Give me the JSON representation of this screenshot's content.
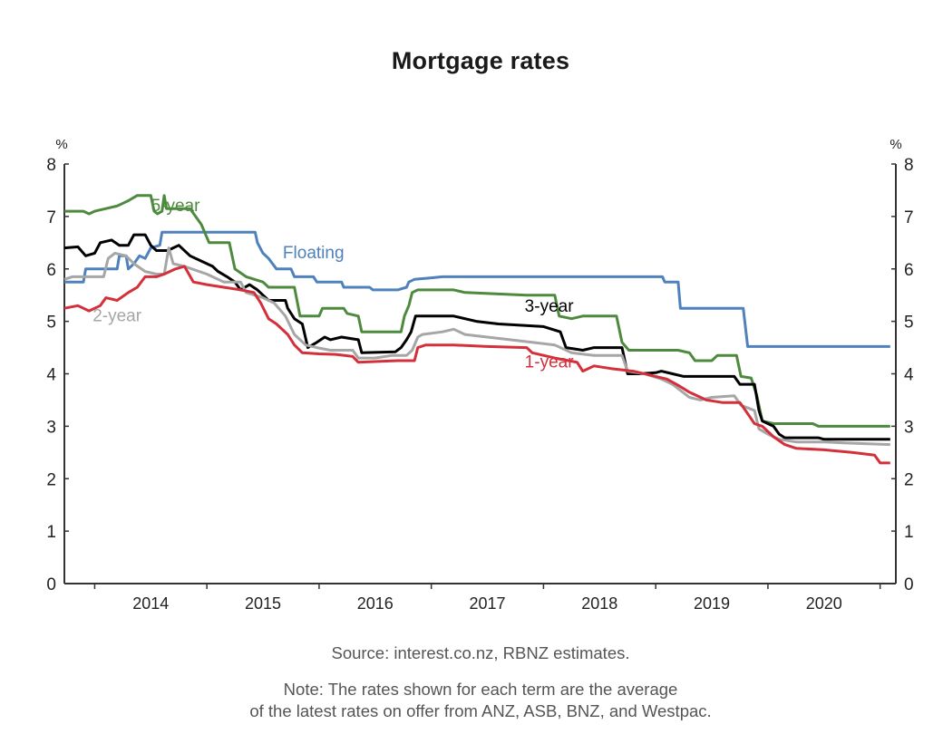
{
  "chart_data": {
    "type": "line",
    "title": "Mortgage rates",
    "ylabel_left": "%",
    "ylabel_right": "%",
    "xlabel": "",
    "xlim": [
      2013.73,
      2021.14
    ],
    "ylim": [
      0,
      8
    ],
    "yticks": [
      "0",
      "1",
      "2",
      "3",
      "4",
      "5",
      "6",
      "7",
      "8"
    ],
    "xtick_boundaries": [
      2014,
      2015,
      2016,
      2017,
      2018,
      2019,
      2020,
      2021
    ],
    "xticklabels": [
      {
        "label": "2014",
        "at": 2014.5
      },
      {
        "label": "2015",
        "at": 2015.5
      },
      {
        "label": "2016",
        "at": 2016.5
      },
      {
        "label": "2017",
        "at": 2017.5
      },
      {
        "label": "2018",
        "at": 2018.5
      },
      {
        "label": "2019",
        "at": 2019.5
      },
      {
        "label": "2020",
        "at": 2020.5
      }
    ],
    "grid": false,
    "series": [
      {
        "name": "Floating",
        "color": "#4f81bd",
        "label_at": [
          2015.95,
          6.2
        ],
        "points": [
          [
            2013.73,
            5.75
          ],
          [
            2013.9,
            5.75
          ],
          [
            2013.92,
            6.0
          ],
          [
            2014.2,
            6.0
          ],
          [
            2014.22,
            6.25
          ],
          [
            2014.28,
            6.25
          ],
          [
            2014.3,
            6.0
          ],
          [
            2014.35,
            6.1
          ],
          [
            2014.4,
            6.25
          ],
          [
            2014.45,
            6.2
          ],
          [
            2014.5,
            6.4
          ],
          [
            2014.58,
            6.45
          ],
          [
            2014.6,
            6.7
          ],
          [
            2015.43,
            6.7
          ],
          [
            2015.45,
            6.5
          ],
          [
            2015.5,
            6.3
          ],
          [
            2015.55,
            6.2
          ],
          [
            2015.62,
            6.0
          ],
          [
            2015.75,
            6.0
          ],
          [
            2015.78,
            5.85
          ],
          [
            2015.95,
            5.85
          ],
          [
            2015.98,
            5.75
          ],
          [
            2016.2,
            5.75
          ],
          [
            2016.22,
            5.65
          ],
          [
            2016.45,
            5.65
          ],
          [
            2016.48,
            5.6
          ],
          [
            2016.7,
            5.6
          ],
          [
            2016.78,
            5.65
          ],
          [
            2016.8,
            5.75
          ],
          [
            2016.85,
            5.8
          ],
          [
            2017.0,
            5.83
          ],
          [
            2017.1,
            5.85
          ],
          [
            2019.06,
            5.85
          ],
          [
            2019.08,
            5.75
          ],
          [
            2019.2,
            5.75
          ],
          [
            2019.22,
            5.25
          ],
          [
            2019.78,
            5.25
          ],
          [
            2019.82,
            4.52
          ],
          [
            2021.09,
            4.52
          ]
        ]
      },
      {
        "name": "5-year",
        "color": "#4e8a3e",
        "label_at": [
          2014.72,
          7.1
        ],
        "points": [
          [
            2013.73,
            7.1
          ],
          [
            2013.9,
            7.1
          ],
          [
            2013.95,
            7.05
          ],
          [
            2014.0,
            7.1
          ],
          [
            2014.1,
            7.15
          ],
          [
            2014.2,
            7.2
          ],
          [
            2014.3,
            7.3
          ],
          [
            2014.38,
            7.4
          ],
          [
            2014.5,
            7.4
          ],
          [
            2014.53,
            7.1
          ],
          [
            2014.56,
            7.05
          ],
          [
            2014.6,
            7.1
          ],
          [
            2014.62,
            7.4
          ],
          [
            2014.64,
            7.15
          ],
          [
            2014.85,
            7.15
          ],
          [
            2014.95,
            6.85
          ],
          [
            2015.02,
            6.5
          ],
          [
            2015.2,
            6.5
          ],
          [
            2015.25,
            6.0
          ],
          [
            2015.35,
            5.85
          ],
          [
            2015.5,
            5.75
          ],
          [
            2015.55,
            5.65
          ],
          [
            2015.78,
            5.65
          ],
          [
            2015.83,
            5.1
          ],
          [
            2016.0,
            5.1
          ],
          [
            2016.03,
            5.25
          ],
          [
            2016.22,
            5.25
          ],
          [
            2016.25,
            5.15
          ],
          [
            2016.35,
            5.1
          ],
          [
            2016.38,
            4.8
          ],
          [
            2016.73,
            4.8
          ],
          [
            2016.76,
            5.1
          ],
          [
            2016.8,
            5.3
          ],
          [
            2016.83,
            5.55
          ],
          [
            2016.88,
            5.6
          ],
          [
            2017.2,
            5.6
          ],
          [
            2017.3,
            5.55
          ],
          [
            2017.85,
            5.5
          ],
          [
            2018.1,
            5.5
          ],
          [
            2018.14,
            5.1
          ],
          [
            2018.25,
            5.05
          ],
          [
            2018.35,
            5.1
          ],
          [
            2018.65,
            5.1
          ],
          [
            2018.7,
            4.6
          ],
          [
            2018.76,
            4.45
          ],
          [
            2019.2,
            4.45
          ],
          [
            2019.3,
            4.4
          ],
          [
            2019.35,
            4.25
          ],
          [
            2019.5,
            4.25
          ],
          [
            2019.55,
            4.35
          ],
          [
            2019.72,
            4.35
          ],
          [
            2019.76,
            3.95
          ],
          [
            2019.85,
            3.92
          ],
          [
            2019.9,
            3.6
          ],
          [
            2019.95,
            3.1
          ],
          [
            2020.05,
            3.05
          ],
          [
            2020.15,
            3.05
          ],
          [
            2020.4,
            3.05
          ],
          [
            2020.45,
            3.0
          ],
          [
            2021.09,
            3.0
          ]
        ]
      },
      {
        "name": "3-year",
        "color": "#000000",
        "label_at": [
          2018.05,
          5.18
        ],
        "points": [
          [
            2013.73,
            6.4
          ],
          [
            2013.85,
            6.42
          ],
          [
            2013.92,
            6.25
          ],
          [
            2014.0,
            6.3
          ],
          [
            2014.05,
            6.5
          ],
          [
            2014.15,
            6.55
          ],
          [
            2014.22,
            6.45
          ],
          [
            2014.3,
            6.45
          ],
          [
            2014.35,
            6.65
          ],
          [
            2014.45,
            6.65
          ],
          [
            2014.5,
            6.45
          ],
          [
            2014.55,
            6.35
          ],
          [
            2014.65,
            6.35
          ],
          [
            2014.7,
            6.4
          ],
          [
            2014.75,
            6.45
          ],
          [
            2014.85,
            6.25
          ],
          [
            2014.95,
            6.15
          ],
          [
            2015.05,
            6.05
          ],
          [
            2015.1,
            5.95
          ],
          [
            2015.18,
            5.85
          ],
          [
            2015.25,
            5.75
          ],
          [
            2015.3,
            5.6
          ],
          [
            2015.38,
            5.7
          ],
          [
            2015.45,
            5.6
          ],
          [
            2015.5,
            5.5
          ],
          [
            2015.55,
            5.4
          ],
          [
            2015.7,
            5.4
          ],
          [
            2015.72,
            5.25
          ],
          [
            2015.78,
            5.05
          ],
          [
            2015.85,
            4.95
          ],
          [
            2015.9,
            4.5
          ],
          [
            2015.98,
            4.6
          ],
          [
            2016.05,
            4.7
          ],
          [
            2016.1,
            4.65
          ],
          [
            2016.2,
            4.7
          ],
          [
            2016.35,
            4.65
          ],
          [
            2016.38,
            4.4
          ],
          [
            2016.68,
            4.42
          ],
          [
            2016.73,
            4.5
          ],
          [
            2016.78,
            4.65
          ],
          [
            2016.82,
            4.8
          ],
          [
            2016.86,
            5.1
          ],
          [
            2017.2,
            5.1
          ],
          [
            2017.4,
            5.0
          ],
          [
            2017.6,
            4.95
          ],
          [
            2018.0,
            4.9
          ],
          [
            2018.15,
            4.8
          ],
          [
            2018.2,
            4.5
          ],
          [
            2018.35,
            4.45
          ],
          [
            2018.45,
            4.5
          ],
          [
            2018.7,
            4.5
          ],
          [
            2018.75,
            4.0
          ],
          [
            2018.85,
            4.0
          ],
          [
            2019.0,
            4.02
          ],
          [
            2019.05,
            4.05
          ],
          [
            2019.15,
            4.0
          ],
          [
            2019.25,
            3.95
          ],
          [
            2019.7,
            3.95
          ],
          [
            2019.75,
            3.8
          ],
          [
            2019.88,
            3.8
          ],
          [
            2019.92,
            3.3
          ],
          [
            2019.95,
            3.1
          ],
          [
            2020.05,
            3.0
          ],
          [
            2020.1,
            2.85
          ],
          [
            2020.15,
            2.78
          ],
          [
            2020.45,
            2.78
          ],
          [
            2020.5,
            2.75
          ],
          [
            2021.09,
            2.75
          ]
        ]
      },
      {
        "name": "2-year",
        "color": "#a6a6a6",
        "label_at": [
          2014.2,
          5.0
        ],
        "points": [
          [
            2013.73,
            5.8
          ],
          [
            2013.8,
            5.85
          ],
          [
            2013.9,
            5.85
          ],
          [
            2014.08,
            5.85
          ],
          [
            2014.12,
            6.2
          ],
          [
            2014.18,
            6.3
          ],
          [
            2014.28,
            6.25
          ],
          [
            2014.35,
            6.1
          ],
          [
            2014.45,
            5.95
          ],
          [
            2014.55,
            5.9
          ],
          [
            2014.62,
            5.9
          ],
          [
            2014.66,
            6.4
          ],
          [
            2014.7,
            6.1
          ],
          [
            2014.8,
            6.05
          ],
          [
            2015.0,
            5.9
          ],
          [
            2015.15,
            5.75
          ],
          [
            2015.3,
            5.75
          ],
          [
            2015.35,
            5.55
          ],
          [
            2015.5,
            5.45
          ],
          [
            2015.6,
            5.35
          ],
          [
            2015.7,
            5.1
          ],
          [
            2015.78,
            4.75
          ],
          [
            2015.88,
            4.55
          ],
          [
            2015.98,
            4.5
          ],
          [
            2016.1,
            4.45
          ],
          [
            2016.3,
            4.45
          ],
          [
            2016.35,
            4.3
          ],
          [
            2016.5,
            4.3
          ],
          [
            2016.65,
            4.35
          ],
          [
            2016.78,
            4.35
          ],
          [
            2016.83,
            4.45
          ],
          [
            2016.88,
            4.7
          ],
          [
            2016.92,
            4.75
          ],
          [
            2017.1,
            4.8
          ],
          [
            2017.2,
            4.85
          ],
          [
            2017.3,
            4.75
          ],
          [
            2017.5,
            4.7
          ],
          [
            2017.7,
            4.65
          ],
          [
            2017.9,
            4.6
          ],
          [
            2018.1,
            4.55
          ],
          [
            2018.25,
            4.4
          ],
          [
            2018.45,
            4.35
          ],
          [
            2018.7,
            4.35
          ],
          [
            2018.75,
            4.05
          ],
          [
            2018.9,
            4.0
          ],
          [
            2019.05,
            3.9
          ],
          [
            2019.15,
            3.8
          ],
          [
            2019.3,
            3.55
          ],
          [
            2019.4,
            3.5
          ],
          [
            2019.5,
            3.55
          ],
          [
            2019.7,
            3.58
          ],
          [
            2019.76,
            3.4
          ],
          [
            2019.88,
            3.3
          ],
          [
            2019.92,
            2.95
          ],
          [
            2020.0,
            2.85
          ],
          [
            2020.1,
            2.75
          ],
          [
            2020.25,
            2.7
          ],
          [
            2020.5,
            2.7
          ],
          [
            2020.7,
            2.68
          ],
          [
            2021.09,
            2.65
          ]
        ]
      },
      {
        "name": "1-year",
        "color": "#d4303b",
        "label_at": [
          2018.05,
          4.12
        ],
        "points": [
          [
            2013.73,
            5.25
          ],
          [
            2013.85,
            5.3
          ],
          [
            2013.95,
            5.2
          ],
          [
            2014.05,
            5.3
          ],
          [
            2014.1,
            5.45
          ],
          [
            2014.2,
            5.4
          ],
          [
            2014.3,
            5.55
          ],
          [
            2014.38,
            5.65
          ],
          [
            2014.45,
            5.85
          ],
          [
            2014.55,
            5.85
          ],
          [
            2014.62,
            5.9
          ],
          [
            2014.72,
            6.0
          ],
          [
            2014.8,
            6.05
          ],
          [
            2014.88,
            5.75
          ],
          [
            2015.0,
            5.7
          ],
          [
            2015.15,
            5.65
          ],
          [
            2015.3,
            5.6
          ],
          [
            2015.42,
            5.55
          ],
          [
            2015.48,
            5.35
          ],
          [
            2015.55,
            5.05
          ],
          [
            2015.62,
            4.95
          ],
          [
            2015.72,
            4.75
          ],
          [
            2015.78,
            4.55
          ],
          [
            2015.85,
            4.4
          ],
          [
            2016.0,
            4.38
          ],
          [
            2016.15,
            4.37
          ],
          [
            2016.3,
            4.33
          ],
          [
            2016.35,
            4.22
          ],
          [
            2016.7,
            4.25
          ],
          [
            2016.85,
            4.25
          ],
          [
            2016.88,
            4.5
          ],
          [
            2016.95,
            4.55
          ],
          [
            2017.2,
            4.55
          ],
          [
            2017.5,
            4.52
          ],
          [
            2017.85,
            4.5
          ],
          [
            2017.9,
            4.4
          ],
          [
            2018.1,
            4.3
          ],
          [
            2018.3,
            4.22
          ],
          [
            2018.35,
            4.05
          ],
          [
            2018.45,
            4.15
          ],
          [
            2018.6,
            4.1
          ],
          [
            2018.8,
            4.05
          ],
          [
            2019.0,
            3.95
          ],
          [
            2019.1,
            3.9
          ],
          [
            2019.2,
            3.78
          ],
          [
            2019.3,
            3.65
          ],
          [
            2019.45,
            3.5
          ],
          [
            2019.6,
            3.45
          ],
          [
            2019.75,
            3.45
          ],
          [
            2019.8,
            3.3
          ],
          [
            2019.88,
            3.05
          ],
          [
            2019.95,
            3.0
          ],
          [
            2020.05,
            2.8
          ],
          [
            2020.15,
            2.65
          ],
          [
            2020.25,
            2.58
          ],
          [
            2020.5,
            2.55
          ],
          [
            2020.75,
            2.5
          ],
          [
            2020.95,
            2.45
          ],
          [
            2021.0,
            2.3
          ],
          [
            2021.09,
            2.3
          ]
        ]
      }
    ]
  },
  "footer": {
    "source": "Source: interest.co.nz, RBNZ estimates.",
    "note_line1": "Note: The rates shown for each term are the average",
    "note_line2": "of the latest rates on offer from ANZ, ASB, BNZ, and Westpac."
  }
}
